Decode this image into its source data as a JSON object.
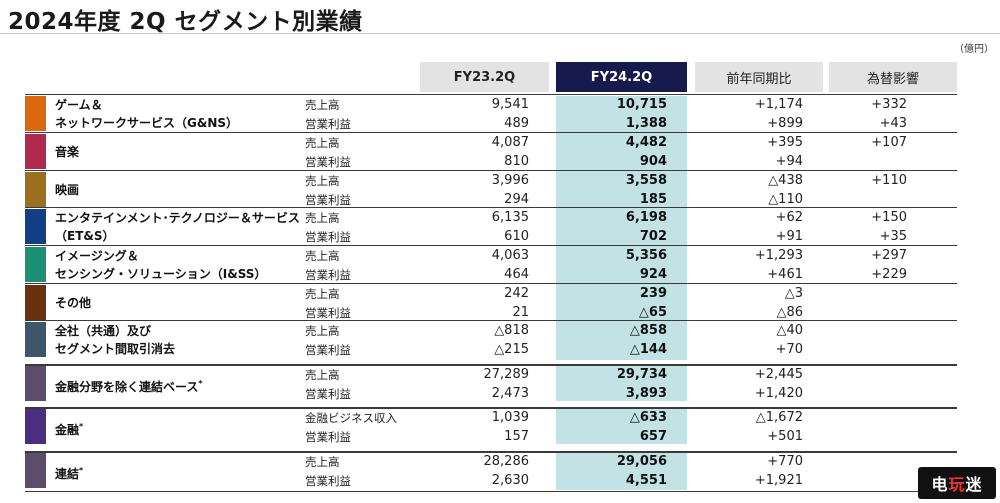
{
  "title": "2024年度 2Q セグメント別業績",
  "unit": "（億円）",
  "headers": {
    "fy23": "FY23.2Q",
    "fy24": "FY24.2Q",
    "yoy": "前年同期比",
    "fx": "為替影響"
  },
  "colors": {
    "fy24_header": "#171a4c",
    "fy24_highlight": "#c2e2e6",
    "header_gray": "#e3e3e3"
  },
  "segments": [
    {
      "name_lines": [
        "ゲーム＆",
        "ネットワークサービス（G&NS）"
      ],
      "name_sup": "",
      "color": "#d9690c",
      "rows": [
        {
          "metric": "売上高",
          "fy23": "9,541",
          "fy24": "10,715",
          "yoy": "+1,174",
          "fx": "+332"
        },
        {
          "metric": "営業利益",
          "fy23": "489",
          "fy24": "1,388",
          "yoy": "+899",
          "fx": "+43"
        }
      ]
    },
    {
      "name_lines": [
        "音楽"
      ],
      "name_sup": "",
      "color": "#b02a4e",
      "rows": [
        {
          "metric": "売上高",
          "fy23": "4,087",
          "fy24": "4,482",
          "yoy": "+395",
          "fx": "+107"
        },
        {
          "metric": "営業利益",
          "fy23": "810",
          "fy24": "904",
          "yoy": "+94",
          "fx": ""
        }
      ]
    },
    {
      "name_lines": [
        "映画"
      ],
      "name_sup": "",
      "color": "#9b6f1e",
      "rows": [
        {
          "metric": "売上高",
          "fy23": "3,996",
          "fy24": "3,558",
          "yoy": "△438",
          "fx": "+110"
        },
        {
          "metric": "営業利益",
          "fy23": "294",
          "fy24": "185",
          "yoy": "△110",
          "fx": ""
        }
      ]
    },
    {
      "name_lines": [
        "エンタテインメント･テクノロジー＆サービス",
        "（ET&S）"
      ],
      "name_sup": "",
      "color": "#123e86",
      "rows": [
        {
          "metric": "売上高",
          "fy23": "6,135",
          "fy24": "6,198",
          "yoy": "+62",
          "fx": "+150"
        },
        {
          "metric": "営業利益",
          "fy23": "610",
          "fy24": "702",
          "yoy": "+91",
          "fx": "+35"
        }
      ]
    },
    {
      "name_lines": [
        "イメージング＆",
        "センシング・ソリューション（I&SS）"
      ],
      "name_sup": "",
      "color": "#1a8f73",
      "rows": [
        {
          "metric": "売上高",
          "fy23": "4,063",
          "fy24": "5,356",
          "yoy": "+1,293",
          "fx": "+297"
        },
        {
          "metric": "営業利益",
          "fy23": "464",
          "fy24": "924",
          "yoy": "+461",
          "fx": "+229"
        }
      ]
    },
    {
      "name_lines": [
        "その他"
      ],
      "name_sup": "",
      "color": "#6a3110",
      "rows": [
        {
          "metric": "売上高",
          "fy23": "242",
          "fy24": "239",
          "yoy": "△3",
          "fx": ""
        },
        {
          "metric": "営業利益",
          "fy23": "21",
          "fy24": "△65",
          "yoy": "△86",
          "fx": ""
        }
      ]
    },
    {
      "name_lines": [
        "全社（共通）及び",
        "セグメント間取引消去"
      ],
      "name_sup": "",
      "color": "#3d566c",
      "rows": [
        {
          "metric": "売上高",
          "fy23": "△818",
          "fy24": "△858",
          "yoy": "△40",
          "fx": ""
        },
        {
          "metric": "営業利益",
          "fy23": "△215",
          "fy24": "△144",
          "yoy": "+70",
          "fx": ""
        }
      ]
    },
    {
      "name_lines": [
        "金融分野を除く連結ベース"
      ],
      "name_sup": "*",
      "color": "#5d4d6b",
      "rows": [
        {
          "metric": "売上高",
          "fy23": "27,289",
          "fy24": "29,734",
          "yoy": "+2,445",
          "fx": ""
        },
        {
          "metric": "営業利益",
          "fy23": "2,473",
          "fy24": "3,893",
          "yoy": "+1,420",
          "fx": ""
        }
      ]
    },
    {
      "name_lines": [
        "金融"
      ],
      "name_sup": "*",
      "color": "#4b2e7f",
      "rows": [
        {
          "metric": "金融ビジネス収入",
          "fy23": "1,039",
          "fy24": "△633",
          "yoy": "△1,672",
          "fx": ""
        },
        {
          "metric": "営業利益",
          "fy23": "157",
          "fy24": "657",
          "yoy": "+501",
          "fx": ""
        }
      ]
    },
    {
      "name_lines": [
        "連結"
      ],
      "name_sup": "*",
      "color": "#5d4d6b",
      "rows": [
        {
          "metric": "売上高",
          "fy23": "28,286",
          "fy24": "29,056",
          "yoy": "+770",
          "fx": ""
        },
        {
          "metric": "営業利益",
          "fy23": "2,630",
          "fy24": "4,551",
          "yoy": "+1,921",
          "fx": ""
        }
      ]
    }
  ],
  "watermark": {
    "text_a": "电",
    "text_b": "玩",
    "text_c": "迷"
  }
}
